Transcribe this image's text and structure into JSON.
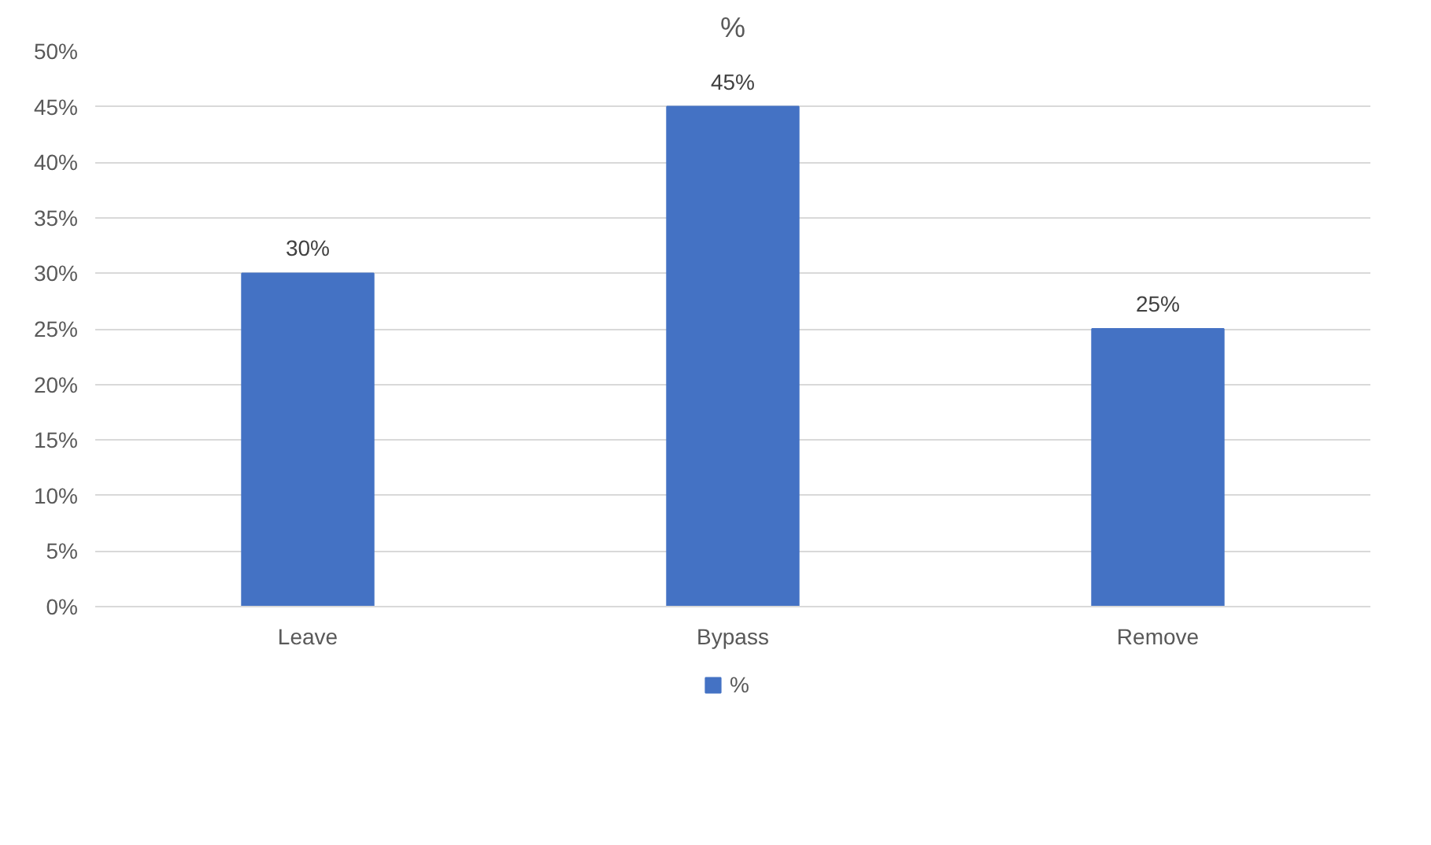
{
  "chart_data": {
    "type": "bar",
    "title": "%",
    "categories": [
      "Leave",
      "Bypass",
      "Remove"
    ],
    "series": [
      {
        "name": "%",
        "color": "#4472c4",
        "values": [
          30,
          45,
          25
        ],
        "value_labels": [
          "30%",
          "45%",
          "25%"
        ]
      }
    ],
    "ylim": [
      0,
      50
    ],
    "yticks": [
      {
        "value": 0,
        "label": "0%"
      },
      {
        "value": 5,
        "label": "5%"
      },
      {
        "value": 10,
        "label": "10%"
      },
      {
        "value": 15,
        "label": "15%"
      },
      {
        "value": 20,
        "label": "20%"
      },
      {
        "value": 25,
        "label": "25%"
      },
      {
        "value": 30,
        "label": "30%"
      },
      {
        "value": 35,
        "label": "35%"
      },
      {
        "value": 40,
        "label": "40%"
      },
      {
        "value": 45,
        "label": "45%"
      },
      {
        "value": 50,
        "label": "50%"
      }
    ],
    "grid": "y",
    "legend": "bottom"
  }
}
